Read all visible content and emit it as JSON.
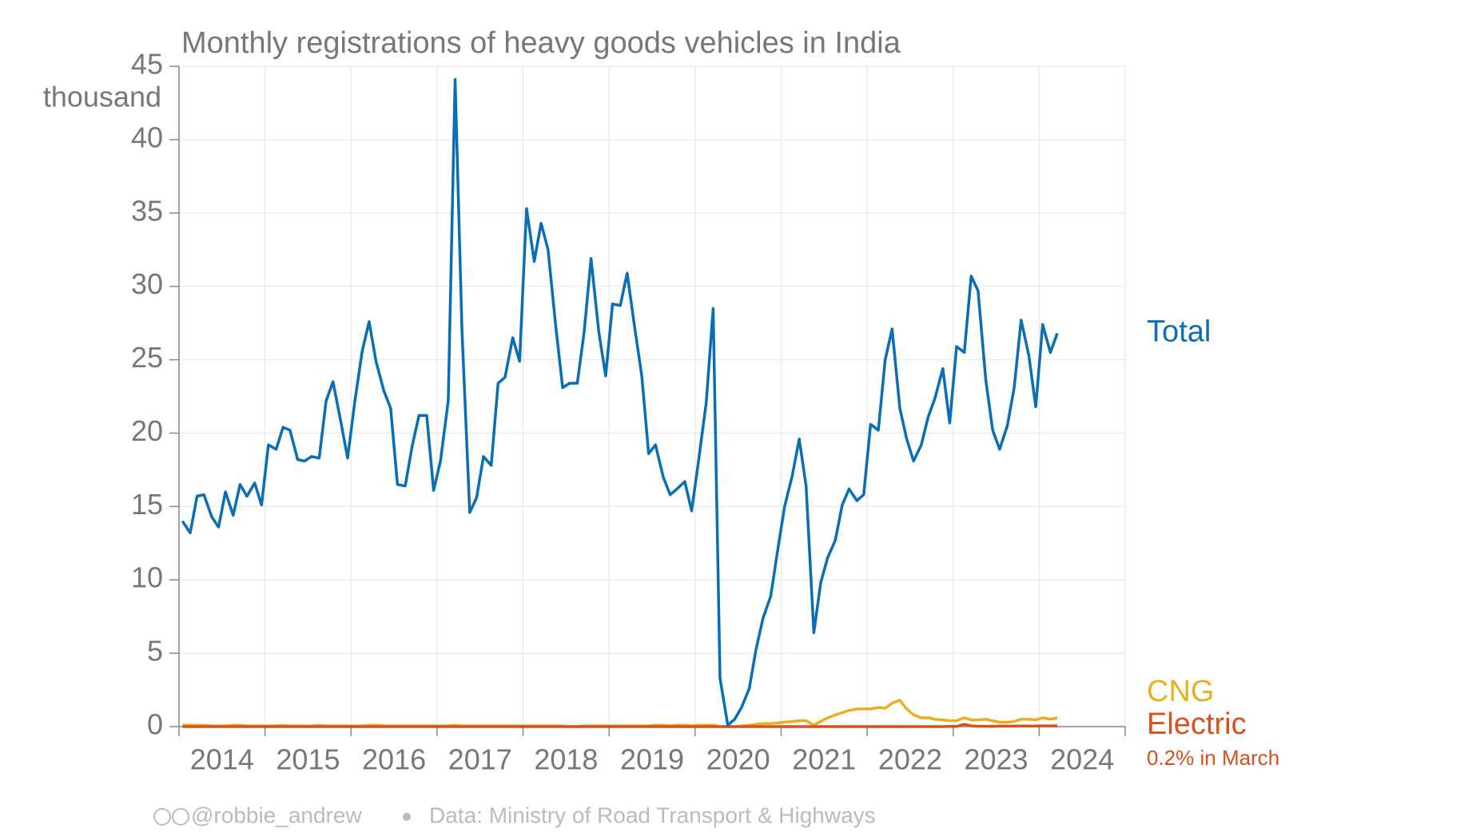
{
  "chart_data": {
    "type": "line",
    "title": "Monthly registrations of heavy goods vehicles in India",
    "y_label": "thousand",
    "x": [
      2014.04,
      2014.13,
      2014.21,
      2014.29,
      2014.38,
      2014.46,
      2014.54,
      2014.63,
      2014.71,
      2014.79,
      2014.88,
      2014.96,
      2015.04,
      2015.13,
      2015.21,
      2015.29,
      2015.38,
      2015.46,
      2015.54,
      2015.63,
      2015.71,
      2015.79,
      2015.88,
      2015.96,
      2016.04,
      2016.13,
      2016.21,
      2016.29,
      2016.38,
      2016.46,
      2016.54,
      2016.63,
      2016.71,
      2016.79,
      2016.88,
      2016.96,
      2017.04,
      2017.13,
      2017.21,
      2017.29,
      2017.38,
      2017.46,
      2017.54,
      2017.63,
      2017.71,
      2017.79,
      2017.88,
      2017.96,
      2018.04,
      2018.13,
      2018.21,
      2018.29,
      2018.38,
      2018.46,
      2018.54,
      2018.63,
      2018.71,
      2018.79,
      2018.88,
      2018.96,
      2019.04,
      2019.13,
      2019.21,
      2019.29,
      2019.38,
      2019.46,
      2019.54,
      2019.63,
      2019.71,
      2019.79,
      2019.88,
      2019.96,
      2020.04,
      2020.13,
      2020.21,
      2020.29,
      2020.38,
      2020.46,
      2020.54,
      2020.63,
      2020.71,
      2020.79,
      2020.88,
      2020.96,
      2021.04,
      2021.13,
      2021.21,
      2021.29,
      2021.38,
      2021.46,
      2021.54,
      2021.63,
      2021.71,
      2021.79,
      2021.88,
      2021.96,
      2022.04,
      2022.13,
      2022.21,
      2022.29,
      2022.38,
      2022.46,
      2022.54,
      2022.63,
      2022.71,
      2022.79,
      2022.88,
      2022.96,
      2023.04,
      2023.13,
      2023.21,
      2023.29,
      2023.38,
      2023.46,
      2023.54,
      2023.63,
      2023.71,
      2023.79,
      2023.88,
      2023.96,
      2024.04,
      2024.13,
      2024.21
    ],
    "series": [
      {
        "name": "CNG",
        "color": "#e8b020",
        "values": [
          0.1,
          0.1,
          0.1,
          0.1,
          0.05,
          0.05,
          0.05,
          0.1,
          0.1,
          0.05,
          0.05,
          0.05,
          0.05,
          0.05,
          0.1,
          0.05,
          0.05,
          0.05,
          0.05,
          0.1,
          0.05,
          0.05,
          0.05,
          0.05,
          0.05,
          0.05,
          0.1,
          0.1,
          0.05,
          0.05,
          0.05,
          0.05,
          0.05,
          0.05,
          0.05,
          0.05,
          0.05,
          0.05,
          0.1,
          0.05,
          0.05,
          0.05,
          0.05,
          0.05,
          0.05,
          0.05,
          0.05,
          0.05,
          0.05,
          0.05,
          0.05,
          0.05,
          0.05,
          0.05,
          0,
          0,
          0.05,
          0.05,
          0.05,
          0.05,
          0.05,
          0.05,
          0.05,
          0.05,
          0.05,
          0.05,
          0.1,
          0.1,
          0.05,
          0.1,
          0.1,
          0.05,
          0.1,
          0.1,
          0.1,
          0,
          0,
          0,
          0.05,
          0.1,
          0.15,
          0.2,
          0.2,
          0.25,
          0.3,
          0.35,
          0.4,
          0.4,
          0.1,
          0.35,
          0.6,
          0.8,
          0.95,
          1.1,
          1.2,
          1.2,
          1.2,
          1.3,
          1.25,
          1.6,
          1.8,
          1.2,
          0.8,
          0.6,
          0.6,
          0.5,
          0.45,
          0.4,
          0.4,
          0.6,
          0.45,
          0.45,
          0.5,
          0.4,
          0.3,
          0.3,
          0.35,
          0.5,
          0.5,
          0.45,
          0.6,
          0.5,
          0.6
        ]
      },
      {
        "name": "Electric",
        "color": "#d9501e",
        "values": [
          0,
          0,
          0,
          0,
          0,
          0,
          0,
          0,
          0,
          0,
          0,
          0,
          0,
          0,
          0,
          0,
          0,
          0,
          0,
          0,
          0,
          0,
          0,
          0,
          0,
          0,
          0,
          0,
          0,
          0,
          0,
          0,
          0,
          0,
          0,
          0,
          0,
          0,
          0,
          0,
          0,
          0,
          0,
          0,
          0,
          0,
          0,
          0,
          0,
          0,
          0,
          0,
          0,
          0,
          0,
          0,
          0,
          0,
          0,
          0,
          0,
          0,
          0,
          0,
          0,
          0,
          0,
          0,
          0,
          0,
          0,
          0,
          0,
          0,
          0,
          0,
          0,
          0,
          0,
          0,
          0,
          0,
          0,
          0,
          0,
          0,
          0,
          0,
          0,
          0,
          0,
          0,
          0,
          0,
          0,
          0,
          0,
          0,
          0,
          0,
          0,
          0,
          0,
          0,
          0,
          0,
          0,
          0.01,
          0.01,
          0.15,
          0.05,
          0.02,
          0.02,
          0.02,
          0.03,
          0.03,
          0.03,
          0.04,
          0.04,
          0.04,
          0.05,
          0.05,
          0.05
        ]
      },
      {
        "name": "Total",
        "color": "#0a6eb4",
        "values": [
          14.0,
          13.2,
          15.7,
          15.8,
          14.3,
          13.6,
          16.0,
          14.4,
          16.5,
          15.7,
          16.6,
          15.1,
          19.2,
          18.9,
          20.4,
          20.2,
          18.2,
          18.1,
          18.4,
          18.3,
          22.2,
          23.5,
          20.8,
          18.3,
          22.0,
          25.6,
          27.6,
          24.9,
          22.9,
          21.7,
          16.5,
          16.4,
          19.1,
          21.2,
          21.2,
          16.1,
          18.1,
          22.2,
          44.1,
          27.0,
          14.6,
          15.6,
          18.4,
          17.8,
          23.4,
          23.8,
          26.5,
          24.9,
          35.3,
          31.7,
          34.3,
          32.5,
          27.3,
          23.1,
          23.4,
          23.4,
          26.9,
          31.9,
          26.9,
          23.9,
          28.8,
          28.7,
          30.9,
          27.5,
          23.9,
          18.6,
          19.2,
          17.0,
          15.8,
          16.2,
          16.7,
          14.7,
          18.1,
          22.1,
          28.5,
          3.3,
          0.1,
          0.5,
          1.3,
          2.6,
          5.3,
          7.4,
          8.9,
          12.0,
          15.0,
          17.1,
          19.6,
          16.4,
          6.4,
          9.8,
          11.5,
          12.7,
          15.1,
          16.2,
          15.4,
          15.8,
          20.6,
          20.2,
          25.0,
          27.1,
          21.7,
          19.6,
          18.1,
          19.2,
          21.1,
          22.4,
          24.4,
          20.7,
          25.9,
          25.5,
          30.7,
          29.7,
          23.6,
          20.2,
          18.9,
          20.5,
          23.1,
          27.7,
          25.3,
          21.8,
          27.4,
          25.5,
          26.8
        ]
      }
    ],
    "annotation": "0.2% in March",
    "xlim": [
      2014,
      2025
    ],
    "xticks": [
      {
        "value": 2014.5,
        "label": "2014"
      },
      {
        "value": 2015.5,
        "label": "2015"
      },
      {
        "value": 2016.5,
        "label": "2016"
      },
      {
        "value": 2017.5,
        "label": "2017"
      },
      {
        "value": 2018.5,
        "label": "2018"
      },
      {
        "value": 2019.5,
        "label": "2019"
      },
      {
        "value": 2020.5,
        "label": "2020"
      },
      {
        "value": 2021.5,
        "label": "2021"
      },
      {
        "value": 2022.5,
        "label": "2022"
      },
      {
        "value": 2023.5,
        "label": "2023"
      },
      {
        "value": 2024.5,
        "label": "2024"
      }
    ],
    "xgrid": [
      2014,
      2015,
      2016,
      2017,
      2018,
      2019,
      2020,
      2021,
      2022,
      2023,
      2024,
      2025
    ],
    "ylim": [
      0,
      45
    ],
    "yticks": [
      0,
      5,
      10,
      15,
      20,
      25,
      30,
      35,
      40,
      45
    ],
    "grid": true,
    "credit": "@robbie_andrew",
    "source": "Data: Ministry of Road Transport & Highways"
  }
}
